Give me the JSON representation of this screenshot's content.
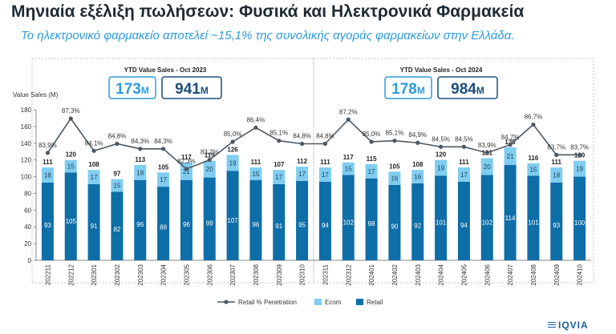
{
  "header": {
    "title": "Μηνιαία εξέλιξη πωλήσεων: Φυσικά και Ηλεκτρονικά Φαρμακεία",
    "subtitle": "Το ηλεκτρονικό φαρμακείο αποτελεί ~15,1% της συνολικής αγοράς φαρμακείων στην Ελλάδα."
  },
  "logo": {
    "text": "IQVIA"
  },
  "colors": {
    "retail": "#0d6ea8",
    "ecom": "#7fcdf0",
    "line": "#4d5862",
    "accent": "#2e9bdc",
    "dark": "#1d4f7c"
  },
  "chart_data": {
    "type": "bar",
    "stacked": true,
    "ylabel": "Value Sales (M)",
    "ylim": [
      0,
      180
    ],
    "yticks": [
      0,
      20,
      40,
      60,
      80,
      100,
      120,
      140,
      160,
      180
    ],
    "grid": false,
    "legend_position": "bottom",
    "categories": [
      "202211",
      "202212",
      "202301",
      "202302",
      "202303",
      "202304",
      "202305",
      "202306",
      "202307",
      "202308",
      "202309",
      "202310",
      "202311",
      "202312",
      "202401",
      "202402",
      "202403",
      "202404",
      "202405",
      "202406",
      "202407",
      "202408",
      "202409",
      "202410"
    ],
    "series": [
      {
        "name": "Retail",
        "values": [
          93,
          105,
          91,
          82,
          96,
          88,
          96,
          99,
          107,
          96,
          91,
          95,
          94,
          102,
          98,
          90,
          92,
          101,
          94,
          102,
          114,
          101,
          93,
          100
        ]
      },
      {
        "name": "Ecom",
        "values": [
          18,
          15,
          17,
          15,
          18,
          17,
          21,
          20,
          19,
          15,
          17,
          17,
          17,
          15,
          17,
          16,
          16,
          19,
          17,
          20,
          21,
          15,
          18,
          19
        ]
      }
    ],
    "totals": [
      111,
      120,
      108,
      97,
      113,
      105,
      117,
      119,
      126,
      111,
      107,
      112,
      111,
      117,
      115,
      105,
      108,
      120,
      111,
      121,
      135,
      116,
      111,
      120
    ],
    "line": {
      "name": "Retail % Penetration",
      "values": [
        83.9,
        87.3,
        84.1,
        84.8,
        84.3,
        84.3,
        82.3,
        83.2,
        85.0,
        86.4,
        85.1,
        84.8,
        84.8,
        87.2,
        85.0,
        85.1,
        84.9,
        84.5,
        84.5,
        83.9,
        84.7,
        86.7,
        83.7,
        83.7
      ],
      "labels": [
        "83,9%",
        "87,3%",
        "84,1%",
        "84,8%",
        "84,3%",
        "84,3%",
        "82,3%",
        "83,2%",
        "85,0%",
        "86,4%",
        "85,1%",
        "84,8%",
        "84,8%",
        "87,2%",
        "85,0%",
        "85,1%",
        "84,9%",
        "84,5%",
        "84,5%",
        "83,9%",
        "84,7%",
        "86,7%",
        "83,7%",
        "83,7%"
      ]
    },
    "panels": [
      {
        "title": "YTD Value Sales - Oct 2023",
        "ecom": "173",
        "retail": "941",
        "unit": "M"
      },
      {
        "title": "YTD Value Sales - Oct 2024",
        "ecom": "178",
        "retail": "984",
        "unit": "M"
      }
    ]
  }
}
